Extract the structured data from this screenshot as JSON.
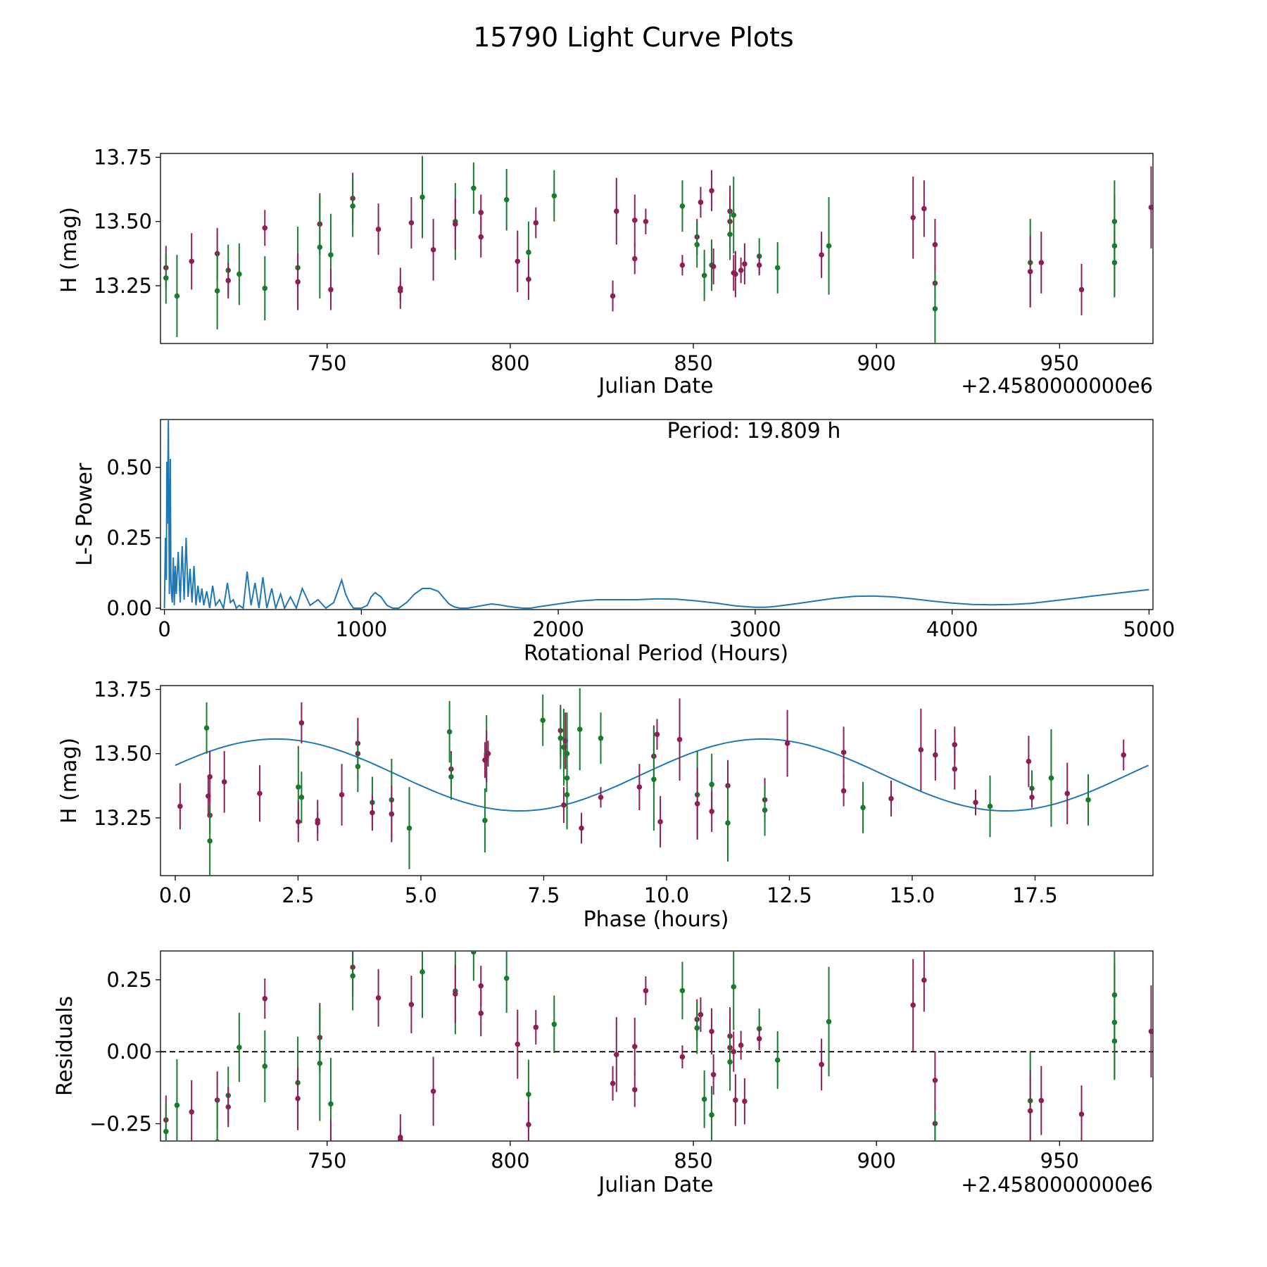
{
  "chart_data": {
    "title": "15790 Light Curve Plots",
    "colors": {
      "red": "#8c1f55",
      "green": "#1a7a2e",
      "line": "#1f77b4"
    },
    "observations": [
      {
        "jd": 706.0,
        "h": 13.32,
        "err": 0.085,
        "band": "red"
      },
      {
        "jd": 706.0,
        "h": 13.28,
        "err": 0.1,
        "band": "green"
      },
      {
        "jd": 709.0,
        "h": 13.21,
        "err": 0.16,
        "band": "green"
      },
      {
        "jd": 713.0,
        "h": 13.345,
        "err": 0.11,
        "band": "red"
      },
      {
        "jd": 720.0,
        "h": 13.375,
        "err": 0.1,
        "band": "red"
      },
      {
        "jd": 720.0,
        "h": 13.23,
        "err": 0.15,
        "band": "green"
      },
      {
        "jd": 723.0,
        "h": 13.31,
        "err": 0.1,
        "band": "green"
      },
      {
        "jd": 723.0,
        "h": 13.27,
        "err": 0.07,
        "band": "red"
      },
      {
        "jd": 726.0,
        "h": 13.295,
        "err": 0.12,
        "band": "green"
      },
      {
        "jd": 733.0,
        "h": 13.475,
        "err": 0.07,
        "band": "red"
      },
      {
        "jd": 733.0,
        "h": 13.24,
        "err": 0.125,
        "band": "green"
      },
      {
        "jd": 742.0,
        "h": 13.32,
        "err": 0.16,
        "band": "green"
      },
      {
        "jd": 742.0,
        "h": 13.265,
        "err": 0.11,
        "band": "red"
      },
      {
        "jd": 748.0,
        "h": 13.49,
        "err": 0.12,
        "band": "red"
      },
      {
        "jd": 748.0,
        "h": 13.4,
        "err": 0.2,
        "band": "green"
      },
      {
        "jd": 751.0,
        "h": 13.37,
        "err": 0.16,
        "band": "green"
      },
      {
        "jd": 751.0,
        "h": 13.235,
        "err": 0.08,
        "band": "red"
      },
      {
        "jd": 757.0,
        "h": 13.59,
        "err": 0.1,
        "band": "red"
      },
      {
        "jd": 757.0,
        "h": 13.56,
        "err": 0.12,
        "band": "green"
      },
      {
        "jd": 764.0,
        "h": 13.47,
        "err": 0.1,
        "band": "red"
      },
      {
        "jd": 770.0,
        "h": 13.24,
        "err": 0.08,
        "band": "red"
      },
      {
        "jd": 770.0,
        "h": 13.23,
        "err": 0.04,
        "band": "red"
      },
      {
        "jd": 773.0,
        "h": 13.495,
        "err": 0.1,
        "band": "red"
      },
      {
        "jd": 776.0,
        "h": 13.595,
        "err": 0.16,
        "band": "green"
      },
      {
        "jd": 779.0,
        "h": 13.39,
        "err": 0.12,
        "band": "red"
      },
      {
        "jd": 785.0,
        "h": 13.5,
        "err": 0.15,
        "band": "green"
      },
      {
        "jd": 785.0,
        "h": 13.49,
        "err": 0.1,
        "band": "red"
      },
      {
        "jd": 790.0,
        "h": 13.63,
        "err": 0.1,
        "band": "green"
      },
      {
        "jd": 792.0,
        "h": 13.535,
        "err": 0.07,
        "band": "red"
      },
      {
        "jd": 792.0,
        "h": 13.44,
        "err": 0.08,
        "band": "red"
      },
      {
        "jd": 799.0,
        "h": 13.585,
        "err": 0.12,
        "band": "green"
      },
      {
        "jd": 802.0,
        "h": 13.345,
        "err": 0.12,
        "band": "red"
      },
      {
        "jd": 805.0,
        "h": 13.38,
        "err": 0.12,
        "band": "green"
      },
      {
        "jd": 805.0,
        "h": 13.275,
        "err": 0.08,
        "band": "red"
      },
      {
        "jd": 807.0,
        "h": 13.495,
        "err": 0.06,
        "band": "red"
      },
      {
        "jd": 812.0,
        "h": 13.6,
        "err": 0.1,
        "band": "green"
      },
      {
        "jd": 828.0,
        "h": 13.21,
        "err": 0.06,
        "band": "red"
      },
      {
        "jd": 829.0,
        "h": 13.54,
        "err": 0.13,
        "band": "red"
      },
      {
        "jd": 834.0,
        "h": 13.505,
        "err": 0.1,
        "band": "red"
      },
      {
        "jd": 834.0,
        "h": 13.355,
        "err": 0.06,
        "band": "red"
      },
      {
        "jd": 837.0,
        "h": 13.5,
        "err": 0.05,
        "band": "red"
      },
      {
        "jd": 847.0,
        "h": 13.56,
        "err": 0.1,
        "band": "green"
      },
      {
        "jd": 847.0,
        "h": 13.33,
        "err": 0.04,
        "band": "red"
      },
      {
        "jd": 851.0,
        "h": 13.44,
        "err": 0.07,
        "band": "red"
      },
      {
        "jd": 851.0,
        "h": 13.41,
        "err": 0.09,
        "band": "green"
      },
      {
        "jd": 852.0,
        "h": 13.575,
        "err": 0.06,
        "band": "red"
      },
      {
        "jd": 853.0,
        "h": 13.29,
        "err": 0.1,
        "band": "green"
      },
      {
        "jd": 855.0,
        "h": 13.62,
        "err": 0.08,
        "band": "red"
      },
      {
        "jd": 855.0,
        "h": 13.33,
        "err": 0.1,
        "band": "green"
      },
      {
        "jd": 855.5,
        "h": 13.325,
        "err": 0.07,
        "band": "red"
      },
      {
        "jd": 860.0,
        "h": 13.54,
        "err": 0.1,
        "band": "red"
      },
      {
        "jd": 860.0,
        "h": 13.5,
        "err": 0.1,
        "band": "red"
      },
      {
        "jd": 860.0,
        "h": 13.45,
        "err": 0.1,
        "band": "green"
      },
      {
        "jd": 861.0,
        "h": 13.525,
        "err": 0.15,
        "band": "green"
      },
      {
        "jd": 861.0,
        "h": 13.3,
        "err": 0.07,
        "band": "red"
      },
      {
        "jd": 861.5,
        "h": 13.295,
        "err": 0.09,
        "band": "red"
      },
      {
        "jd": 863.0,
        "h": 13.31,
        "err": 0.05,
        "band": "red"
      },
      {
        "jd": 864.0,
        "h": 13.335,
        "err": 0.08,
        "band": "red"
      },
      {
        "jd": 868.0,
        "h": 13.365,
        "err": 0.07,
        "band": "green"
      },
      {
        "jd": 868.0,
        "h": 13.33,
        "err": 0.04,
        "band": "red"
      },
      {
        "jd": 873.0,
        "h": 13.32,
        "err": 0.1,
        "band": "green"
      },
      {
        "jd": 885.0,
        "h": 13.37,
        "err": 0.09,
        "band": "red"
      },
      {
        "jd": 887.0,
        "h": 13.405,
        "err": 0.19,
        "band": "green"
      },
      {
        "jd": 910.0,
        "h": 13.515,
        "err": 0.16,
        "band": "red"
      },
      {
        "jd": 913.0,
        "h": 13.55,
        "err": 0.11,
        "band": "red"
      },
      {
        "jd": 916.0,
        "h": 13.41,
        "err": 0.1,
        "band": "red"
      },
      {
        "jd": 916.0,
        "h": 13.26,
        "err": 0.07,
        "band": "red"
      },
      {
        "jd": 916.0,
        "h": 13.16,
        "err": 0.14,
        "band": "green"
      },
      {
        "jd": 942.0,
        "h": 13.34,
        "err": 0.17,
        "band": "green"
      },
      {
        "jd": 942.0,
        "h": 13.305,
        "err": 0.14,
        "band": "red"
      },
      {
        "jd": 945.0,
        "h": 13.34,
        "err": 0.12,
        "band": "red"
      },
      {
        "jd": 956.0,
        "h": 13.235,
        "err": 0.1,
        "band": "red"
      },
      {
        "jd": 965.0,
        "h": 13.5,
        "err": 0.16,
        "band": "green"
      },
      {
        "jd": 965.0,
        "h": 13.405,
        "err": 0.2,
        "band": "green"
      },
      {
        "jd": 965.0,
        "h": 13.34,
        "err": 0.13,
        "band": "green"
      },
      {
        "jd": 975.0,
        "h": 13.555,
        "err": 0.16,
        "band": "red"
      }
    ],
    "panels": [
      {
        "id": "light-curve",
        "type": "scatter",
        "xlabel": "Julian Date",
        "ylabel": "H (mag)",
        "xlim": [
          704.5,
          975.5
        ],
        "ylim": [
          13.025,
          13.765
        ],
        "xticks": [
          750,
          800,
          850,
          900,
          950
        ],
        "xtick_labels": [
          "750",
          "800",
          "850",
          "900",
          "950"
        ],
        "yticks": [
          13.25,
          13.5,
          13.75
        ],
        "ytick_labels": [
          "13.25",
          "13.50",
          "13.75"
        ],
        "offset_text": "+2.4580000000e6"
      },
      {
        "id": "periodogram",
        "type": "line",
        "xlabel": "Rotational Period (Hours)",
        "ylabel": "L-S Power",
        "xlim": [
          -20,
          5020
        ],
        "ylim": [
          -0.005,
          0.67
        ],
        "xticks": [
          0,
          1000,
          2000,
          3000,
          4000,
          5000
        ],
        "xtick_labels": [
          "0",
          "1000",
          "2000",
          "3000",
          "4000",
          "5000"
        ],
        "yticks": [
          0.0,
          0.25,
          0.5
        ],
        "ytick_labels": [
          "0.00",
          "0.25",
          "0.50"
        ],
        "annotation": "Period: 19.809 h",
        "curve": {
          "x": [
            0,
            5,
            10,
            12,
            15,
            20,
            25,
            30,
            33,
            36,
            40,
            45,
            50,
            55,
            60,
            70,
            80,
            90,
            100,
            110,
            120,
            130,
            140,
            150,
            160,
            170,
            180,
            190,
            200,
            215,
            230,
            245,
            260,
            280,
            300,
            320,
            335,
            350,
            365,
            380,
            400,
            420,
            440,
            460,
            480,
            500,
            520,
            545,
            565,
            590,
            610,
            640,
            670,
            700,
            740,
            780,
            820,
            860,
            880,
            900,
            920,
            940,
            960,
            980,
            1000,
            1030,
            1050,
            1070,
            1100,
            1130,
            1160,
            1190,
            1230,
            1270,
            1310,
            1350,
            1390,
            1420,
            1445,
            1470,
            1500,
            1540,
            1580,
            1620,
            1660,
            1700,
            1740,
            1780,
            1820,
            1860,
            1900,
            2000,
            2100,
            2200,
            2300,
            2400,
            2500,
            2600,
            2700,
            2800,
            2900,
            3000,
            3050,
            3100,
            3200,
            3300,
            3400,
            3500,
            3600,
            3700,
            3800,
            3900,
            4000,
            4100,
            4200,
            4300,
            4400,
            4500,
            4600,
            4700,
            4800,
            4900,
            5000
          ],
          "y": [
            0.0,
            0.25,
            0.1,
            0.52,
            0.3,
            0.67,
            0.05,
            0.53,
            0.1,
            0.05,
            0.02,
            0.18,
            0.01,
            0.15,
            0.05,
            0.2,
            0.02,
            0.22,
            0.03,
            0.25,
            0.04,
            0.14,
            0.02,
            0.15,
            0.01,
            0.08,
            0.02,
            0.07,
            0.01,
            0.06,
            0.0,
            0.08,
            0.01,
            0.03,
            0.0,
            0.09,
            0.02,
            0.03,
            0.0,
            0.01,
            0.0,
            0.13,
            0.01,
            0.09,
            0.0,
            0.11,
            0.0,
            0.07,
            0.0,
            0.05,
            0.0,
            0.04,
            0.0,
            0.07,
            0.01,
            0.03,
            0.0,
            0.02,
            0.06,
            0.1,
            0.05,
            0.02,
            0.0,
            0.0,
            0.0,
            0.01,
            0.04,
            0.055,
            0.04,
            0.01,
            0.0,
            0.0,
            0.02,
            0.05,
            0.07,
            0.07,
            0.06,
            0.035,
            0.015,
            0.005,
            0.0,
            0.0,
            0.005,
            0.01,
            0.015,
            0.012,
            0.007,
            0.003,
            0.0,
            0.0,
            0.005,
            0.015,
            0.025,
            0.03,
            0.03,
            0.03,
            0.033,
            0.032,
            0.026,
            0.018,
            0.008,
            0.003,
            0.003,
            0.006,
            0.015,
            0.025,
            0.035,
            0.042,
            0.043,
            0.04,
            0.033,
            0.025,
            0.018,
            0.013,
            0.012,
            0.013,
            0.017,
            0.025,
            0.033,
            0.042,
            0.05,
            0.058,
            0.066
          ]
        }
      },
      {
        "id": "phased-curve",
        "type": "scatter",
        "xlabel": "Phase (hours)",
        "ylabel": "H (mag)",
        "xlim": [
          -0.3,
          19.9
        ],
        "ylim": [
          13.025,
          13.765
        ],
        "xticks": [
          0.0,
          2.5,
          5.0,
          7.5,
          10.0,
          12.5,
          15.0,
          17.5
        ],
        "xtick_labels": [
          "0.0",
          "2.5",
          "5.0",
          "7.5",
          "10.0",
          "12.5",
          "15.0",
          "17.5"
        ],
        "yticks": [
          13.25,
          13.5,
          13.75
        ],
        "ytick_labels": [
          "13.25",
          "13.50",
          "13.75"
        ],
        "period_hours": 19.809,
        "fit": {
          "mean": 13.417,
          "amplitude": 0.14,
          "phase_max_hours": 7.0,
          "cycle_hours": 9.9045
        }
      },
      {
        "id": "residuals",
        "type": "scatter",
        "xlabel": "Julian Date",
        "ylabel": "Residuals",
        "xlim": [
          704.5,
          975.5
        ],
        "ylim": [
          -0.31,
          0.35
        ],
        "xticks": [
          750,
          800,
          850,
          900,
          950
        ],
        "xtick_labels": [
          "750",
          "800",
          "850",
          "900",
          "950"
        ],
        "yticks": [
          -0.25,
          0.0,
          0.25
        ],
        "ytick_labels": [
          "−0.25",
          "0.00",
          "0.25"
        ],
        "offset_text": "+2.4580000000e6",
        "zero_line": 0.0
      }
    ]
  }
}
